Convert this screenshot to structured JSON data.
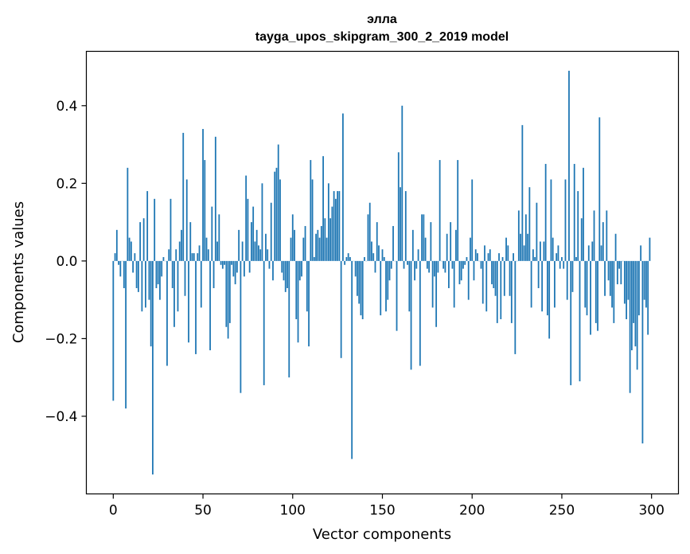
{
  "chart_data": {
    "type": "bar",
    "title": "элла",
    "subtitle": "tayga_upos_skipgram_300_2_2019 model",
    "xlabel": "Vector components",
    "ylabel": "Components values",
    "xlim": [
      -15,
      315
    ],
    "ylim": [
      -0.6,
      0.54
    ],
    "xticks": [
      0,
      50,
      100,
      150,
      200,
      250,
      300
    ],
    "xtick_labels": [
      "0",
      "50",
      "100",
      "150",
      "200",
      "250",
      "300"
    ],
    "yticks": [
      -0.4,
      -0.2,
      0.0,
      0.2,
      0.4
    ],
    "ytick_labels": [
      "−0.4",
      "−0.2",
      "0.0",
      "0.2",
      "0.4"
    ],
    "bar_color": "#1f77b4",
    "grid": false,
    "values": [
      -0.36,
      0.02,
      0.08,
      -0.01,
      -0.04,
      0.0,
      -0.07,
      -0.38,
      0.24,
      0.06,
      0.05,
      -0.03,
      0.02,
      -0.07,
      -0.08,
      0.1,
      -0.13,
      0.11,
      -0.12,
      0.18,
      -0.1,
      -0.22,
      -0.55,
      0.16,
      -0.07,
      -0.06,
      -0.1,
      -0.04,
      0.01,
      0.0,
      -0.27,
      0.03,
      0.16,
      -0.07,
      -0.17,
      0.03,
      -0.13,
      0.05,
      0.08,
      0.33,
      -0.09,
      0.21,
      -0.21,
      0.1,
      0.02,
      0.02,
      -0.24,
      0.02,
      0.04,
      -0.12,
      0.34,
      0.26,
      0.06,
      0.03,
      -0.23,
      0.14,
      -0.07,
      0.32,
      0.05,
      0.12,
      -0.01,
      -0.02,
      -0.01,
      -0.17,
      -0.2,
      -0.16,
      -0.01,
      -0.04,
      -0.06,
      -0.03,
      0.08,
      -0.34,
      0.05,
      -0.04,
      0.22,
      0.16,
      -0.03,
      0.1,
      0.14,
      0.05,
      0.08,
      0.04,
      0.03,
      0.2,
      -0.32,
      0.07,
      0.03,
      -0.02,
      0.15,
      -0.05,
      0.23,
      0.24,
      0.3,
      0.21,
      -0.03,
      -0.05,
      -0.08,
      -0.07,
      -0.3,
      0.06,
      0.12,
      0.08,
      -0.15,
      -0.21,
      -0.05,
      -0.04,
      0.06,
      0.09,
      -0.13,
      -0.22,
      0.26,
      0.21,
      0.01,
      0.07,
      0.08,
      0.06,
      0.09,
      0.27,
      0.11,
      0.06,
      0.2,
      0.11,
      0.14,
      0.18,
      0.16,
      0.18,
      0.18,
      -0.25,
      0.38,
      -0.01,
      0.01,
      0.02,
      0.01,
      -0.51,
      0.0,
      -0.04,
      -0.09,
      -0.11,
      -0.14,
      -0.15,
      0.01,
      0.0,
      0.12,
      0.15,
      0.05,
      0.02,
      -0.03,
      0.1,
      0.04,
      -0.14,
      0.03,
      0.01,
      -0.13,
      -0.1,
      -0.05,
      -0.02,
      0.09,
      0.0,
      -0.18,
      0.28,
      0.19,
      0.4,
      -0.02,
      0.18,
      -0.01,
      -0.13,
      -0.28,
      0.08,
      -0.05,
      -0.02,
      0.03,
      -0.27,
      0.12,
      0.12,
      0.06,
      -0.02,
      -0.03,
      0.1,
      -0.12,
      -0.04,
      -0.17,
      -0.03,
      0.26,
      0.0,
      -0.02,
      -0.03,
      0.07,
      -0.07,
      0.1,
      -0.02,
      -0.12,
      0.08,
      0.26,
      -0.06,
      -0.05,
      -0.02,
      -0.01,
      0.01,
      -0.1,
      0.06,
      0.21,
      -0.05,
      0.03,
      0.02,
      0.0,
      -0.02,
      -0.11,
      0.04,
      -0.13,
      0.02,
      0.03,
      -0.06,
      -0.07,
      -0.09,
      -0.16,
      0.02,
      -0.15,
      0.01,
      -0.09,
      0.06,
      0.04,
      -0.09,
      -0.16,
      0.02,
      -0.24,
      0.0,
      0.13,
      0.07,
      0.35,
      0.04,
      0.12,
      0.07,
      0.19,
      -0.12,
      0.03,
      0.01,
      0.15,
      -0.07,
      0.05,
      -0.13,
      0.05,
      0.25,
      -0.14,
      -0.2,
      0.21,
      0.06,
      -0.12,
      0.02,
      0.04,
      -0.02,
      0.01,
      -0.02,
      0.21,
      -0.1,
      0.49,
      -0.32,
      -0.08,
      0.25,
      0.01,
      0.18,
      -0.31,
      0.11,
      0.24,
      -0.12,
      -0.14,
      0.04,
      -0.19,
      0.05,
      0.13,
      -0.16,
      -0.18,
      0.37,
      0.04,
      0.1,
      -0.09,
      0.13,
      -0.05,
      -0.09,
      -0.12,
      -0.16,
      0.07,
      -0.06,
      -0.02,
      -0.06,
      0.0,
      -0.11,
      -0.15,
      -0.1,
      -0.34,
      -0.23,
      -0.16,
      -0.22,
      -0.28,
      -0.14,
      0.04,
      -0.47,
      -0.1,
      -0.12,
      -0.19,
      0.06
    ]
  }
}
